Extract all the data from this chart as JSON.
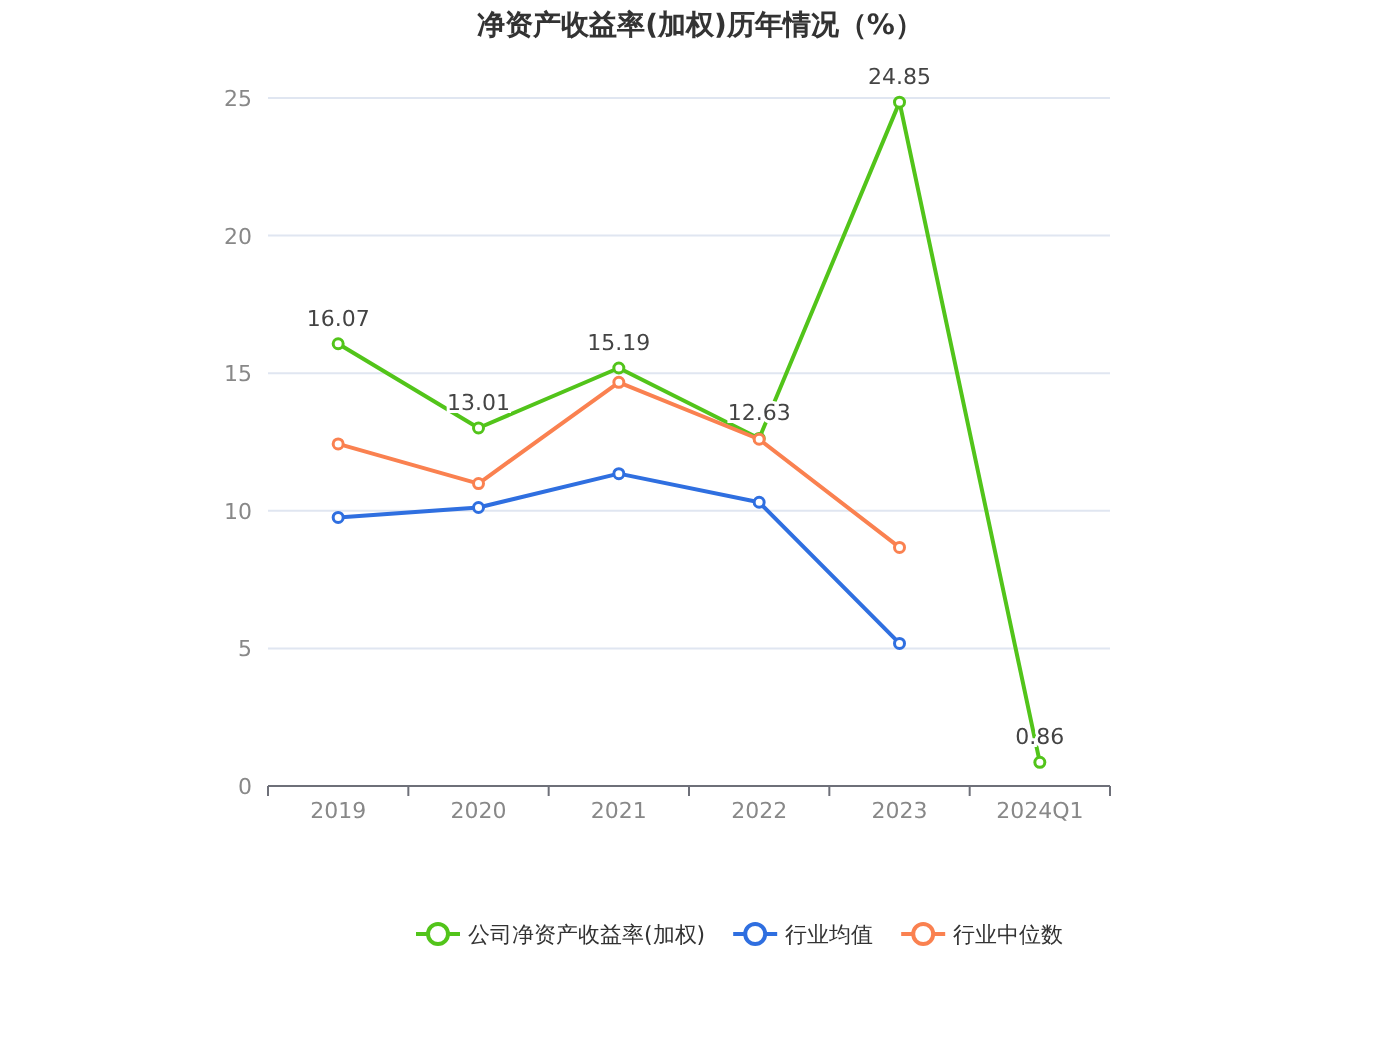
{
  "chart_data": {
    "type": "line",
    "title": "净资产收益率(加权)历年情况（%）",
    "categories": [
      "2019",
      "2020",
      "2021",
      "2022",
      "2023",
      "2024Q1"
    ],
    "series": [
      {
        "name": "公司净资产收益率(加权)",
        "color": "#52c41a",
        "values": [
          16.07,
          13.01,
          15.19,
          12.63,
          24.85,
          0.86
        ],
        "value_labels": [
          "16.07",
          "13.01",
          "15.19",
          "12.63",
          "24.85",
          "0.86"
        ]
      },
      {
        "name": "行业均值",
        "color": "#2f6fe0",
        "values": [
          9.76,
          10.12,
          11.35,
          10.31,
          5.18,
          null
        ]
      },
      {
        "name": "行业中位数",
        "color": "#fa8150",
        "values": [
          12.43,
          10.99,
          14.67,
          12.6,
          8.67,
          null
        ]
      }
    ],
    "ylim": [
      0,
      25
    ],
    "yticks": [
      0,
      5,
      10,
      15,
      20,
      25
    ],
    "grid": "y",
    "legend": "bottom",
    "marker": "circle",
    "line_style": "solid"
  }
}
